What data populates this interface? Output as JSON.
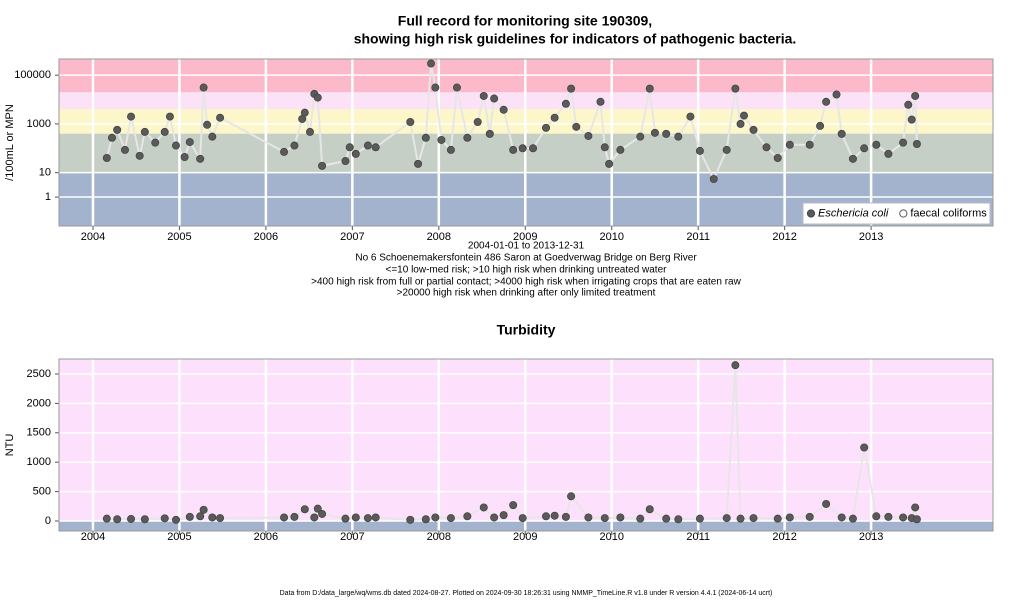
{
  "chart_data": [
    {
      "type": "line",
      "title": [
        "Full record for monitoring site 190309,",
        "showing high risk guidelines for indicators of pathogenic bacteria."
      ],
      "subtitle": [
        "2004-01-01 to 2013-12-31",
        "No 6 Schoenemakersfontein 486 Saron at Goedverwag Bridge on Berg River",
        "<=10 low-med risk; >10 high risk when drinking untreated water",
        ">400 high risk from full or partial contact; >4000 high risk when irrigating crops that are eaten raw",
        ">20000 high risk when drinking after only limited treatment"
      ],
      "y_label": "/100mL or MPN",
      "log_y": true,
      "grid": true,
      "legend": "bottom-right",
      "xlim": [
        2003.607,
        2014.41
      ],
      "xticks": [
        2004,
        2005,
        2006,
        2007,
        2008,
        2009,
        2010,
        2011,
        2012,
        2013
      ],
      "ylim": [
        0.065,
        460000
      ],
      "yticks": [
        1,
        10,
        1000,
        100000
      ],
      "thresholds": [
        10,
        400,
        4000,
        20000
      ],
      "band_colors": [
        "#a3b3ce",
        "#c5cfc5",
        "#fcf6c9",
        "#fbe2f6",
        "#fbb9c9"
      ],
      "line_color": "#e6e6e6",
      "series": [
        {
          "name": "Eschericia coli",
          "color": "#5a5a5a",
          "marker": "filled",
          "font_style": "italic",
          "x": [
            2004.16,
            2004.22,
            2004.28,
            2004.37,
            2004.44,
            2004.54,
            2004.6,
            2004.72,
            2004.83,
            2004.89,
            2004.96,
            2005.06,
            2005.12,
            2005.24,
            2005.28,
            2005.32,
            2005.38,
            2005.47,
            2006.21,
            2006.33,
            2006.42,
            2006.45,
            2006.51,
            2006.56,
            2006.6,
            2006.65,
            2006.92,
            2006.97,
            2007.04,
            2007.18,
            2007.27,
            2007.67,
            2007.76,
            2007.85,
            2007.91,
            2007.96,
            2008.03,
            2008.14,
            2008.21,
            2008.33,
            2008.45,
            2008.52,
            2008.59,
            2008.64,
            2008.75,
            2008.86,
            2008.97,
            2009.09,
            2009.24,
            2009.34,
            2009.47,
            2009.53,
            2009.59,
            2009.73,
            2009.87,
            2009.92,
            2009.97,
            2010.1,
            2010.33,
            2010.44,
            2010.5,
            2010.63,
            2010.77,
            2010.91,
            2011.02,
            2011.18,
            2011.33,
            2011.43,
            2011.49,
            2011.53,
            2011.64,
            2011.79,
            2011.92,
            2012.06,
            2012.29,
            2012.41,
            2012.48,
            2012.6,
            2012.66,
            2012.79,
            2012.92,
            2013.06,
            2013.2,
            2013.37,
            2013.43,
            2013.47,
            2013.51,
            2013.53
          ],
          "values": [
            40,
            270,
            570,
            86,
            2000,
            49,
            470,
            170,
            470,
            2000,
            130,
            44,
            180,
            37,
            31000,
            920,
            300,
            1800,
            71,
            130,
            1600,
            2900,
            470,
            17000,
            12000,
            19,
            30,
            110,
            59,
            130,
            110,
            1200,
            23,
            270,
            300000,
            31000,
            220,
            86,
            31000,
            270,
            1200,
            14000,
            390,
            11000,
            3800,
            86,
            100,
            100,
            690,
            1800,
            6700,
            28000,
            760,
            320,
            8100,
            110,
            23,
            86,
            300,
            28000,
            430,
            390,
            300,
            2000,
            78,
            5.5,
            86,
            28000,
            1000,
            2200,
            570,
            110,
            40,
            140,
            140,
            830,
            8100,
            16000,
            390,
            37,
            100,
            140,
            59,
            170,
            6100,
            1500,
            14000,
            150
          ]
        },
        {
          "name": "faecal coliforms",
          "color": "#5a5a5a",
          "marker": "open",
          "x": [],
          "values": []
        }
      ]
    },
    {
      "type": "line",
      "title": "Turbidity",
      "y_label": "NTU",
      "grid": true,
      "xlim": [
        2003.607,
        2014.41
      ],
      "xticks": [
        2004,
        2005,
        2006,
        2007,
        2008,
        2009,
        2010,
        2011,
        2012,
        2013
      ],
      "ylim": [
        -170,
        2755
      ],
      "yticks": [
        0,
        500,
        1000,
        1500,
        2000,
        2500
      ],
      "background": "#fde0fb",
      "floor_color": "#a3b3ce",
      "line_color": "#e6e6e6",
      "series": [
        {
          "name": "NTU",
          "color": "#5a5a5a",
          "marker": "filled",
          "x": [
            2004.16,
            2004.28,
            2004.44,
            2004.6,
            2004.83,
            2004.96,
            2005.12,
            2005.24,
            2005.28,
            2005.38,
            2005.47,
            2006.21,
            2006.33,
            2006.45,
            2006.56,
            2006.6,
            2006.65,
            2006.92,
            2007.04,
            2007.18,
            2007.27,
            2007.67,
            2007.85,
            2007.96,
            2008.14,
            2008.33,
            2008.52,
            2008.64,
            2008.75,
            2008.86,
            2008.97,
            2009.24,
            2009.34,
            2009.47,
            2009.53,
            2009.73,
            2009.92,
            2010.1,
            2010.33,
            2010.44,
            2010.63,
            2010.77,
            2011.02,
            2011.33,
            2011.43,
            2011.49,
            2011.64,
            2011.92,
            2012.06,
            2012.29,
            2012.48,
            2012.66,
            2012.79,
            2012.92,
            2013.06,
            2013.2,
            2013.37,
            2013.47,
            2013.51,
            2013.53
          ],
          "values": [
            40,
            30,
            35,
            30,
            45,
            20,
            70,
            80,
            190,
            60,
            50,
            60,
            70,
            200,
            60,
            210,
            120,
            40,
            60,
            50,
            60,
            20,
            30,
            60,
            50,
            80,
            230,
            60,
            100,
            270,
            50,
            80,
            90,
            70,
            420,
            60,
            50,
            60,
            40,
            200,
            40,
            30,
            40,
            50,
            2650,
            40,
            50,
            40,
            60,
            70,
            290,
            60,
            40,
            1250,
            80,
            70,
            60,
            50,
            230,
            30
          ]
        }
      ]
    }
  ],
  "footer": "Data from D:/data_large/wq/wms.db dated 2024-08-27. Plotted on 2024-09-30 18:26:31 using NMMP_TimeLine.R v1.8 under R version 4.4.1 (2024-06-14 ucrt)"
}
